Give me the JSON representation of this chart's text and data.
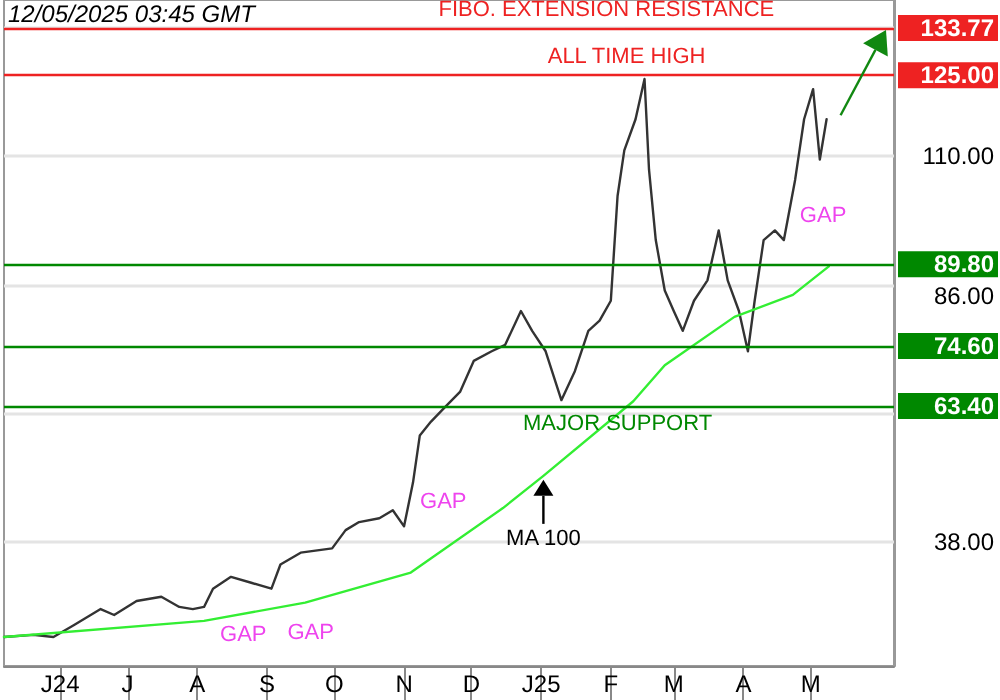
{
  "chart_data": {
    "type": "line",
    "x": [
      "2024-05-07",
      "2024-05-20",
      "2024-05-29",
      "2024-06-07",
      "2024-06-19",
      "2024-06-25",
      "2024-07-05",
      "2024-07-16",
      "2024-07-24",
      "2024-07-30",
      "2024-08-04",
      "2024-08-08",
      "2024-08-16",
      "2024-08-25",
      "2024-09-03",
      "2024-09-07",
      "2024-09-16",
      "2024-09-30",
      "2024-10-06",
      "2024-10-12",
      "2024-10-21",
      "2024-10-27",
      "2024-11-01",
      "2024-11-05",
      "2024-11-08",
      "2024-11-13",
      "2024-11-19",
      "2024-11-26",
      "2024-12-02",
      "2024-12-10",
      "2024-12-16",
      "2024-12-23",
      "2024-12-28",
      "2025-01-03",
      "2025-01-10",
      "2025-01-16",
      "2025-01-22",
      "2025-01-27",
      "2025-02-01",
      "2025-02-04",
      "2025-02-07",
      "2025-02-12",
      "2025-02-16",
      "2025-02-18",
      "2025-02-21",
      "2025-02-25",
      "2025-03-01",
      "2025-03-05",
      "2025-03-10",
      "2025-03-16",
      "2025-03-21",
      "2025-03-25",
      "2025-03-30",
      "2025-04-03",
      "2025-04-06",
      "2025-04-10",
      "2025-04-15",
      "2025-04-19",
      "2025-04-24",
      "2025-04-28",
      "2025-05-02",
      "2025-05-05",
      "2025-05-08"
    ],
    "series": [
      {
        "color": "#333333",
        "values": [
          20.4,
          20.8,
          20.4,
          22.6,
          25.6,
          24.5,
          27.1,
          27.9,
          26,
          25.6,
          26,
          29.4,
          31.6,
          30.5,
          29.4,
          33.9,
          36.1,
          36.9,
          40.3,
          41.8,
          42.5,
          44,
          41,
          49.2,
          57.9,
          60.5,
          63.1,
          66.1,
          71.8,
          73.6,
          74.8,
          81.1,
          77.4,
          73.6,
          64.5,
          69.9,
          77.4,
          79.3,
          83,
          102.5,
          111,
          116.8,
          124.3,
          107.4,
          94.3,
          84.9,
          81.1,
          77.4,
          83,
          86.8,
          96.1,
          86.8,
          81.1,
          73.6,
          83,
          94.3,
          96.1,
          94.3,
          105.5,
          116.8,
          122.4,
          109.3,
          116.8
        ]
      },
      {
        "name": "MA 100",
        "color": "#33ee33",
        "x": [
          "2024-05-07",
          "2024-08-04",
          "2024-09-18",
          "2024-11-04",
          "2024-12-15",
          "2025-01-02",
          "2025-02-11",
          "2025-02-25",
          "2025-03-28",
          "2025-04-23",
          "2025-05-09"
        ],
        "values": [
          20.4,
          23.4,
          26.8,
          32.4,
          44.4,
          50.4,
          64.3,
          71,
          80,
          84.1,
          89.4
        ]
      }
    ],
    "xlim": [
      "2024-05-07",
      "2025-06-07"
    ],
    "xticks": [
      {
        "value": "2024-06-01",
        "label": "J24"
      },
      {
        "value": "2024-07-01",
        "label": "J"
      },
      {
        "value": "2024-08-01",
        "label": "A"
      },
      {
        "value": "2024-09-01",
        "label": "S"
      },
      {
        "value": "2024-10-01",
        "label": "O"
      },
      {
        "value": "2024-11-01",
        "label": "N"
      },
      {
        "value": "2024-12-01",
        "label": "D"
      },
      {
        "value": "2025-01-01",
        "label": "J25"
      },
      {
        "value": "2025-02-01",
        "label": "F"
      },
      {
        "value": "2025-03-01",
        "label": "M"
      },
      {
        "value": "2025-04-01",
        "label": "A"
      },
      {
        "value": "2025-05-01",
        "label": "M"
      }
    ],
    "ylim": [
      15,
      139
    ],
    "yticks": [
      {
        "value": 38,
        "label": "38.00"
      },
      {
        "value": 62,
        "label": null
      },
      {
        "value": 86,
        "label": "86.00"
      },
      {
        "value": 110,
        "label": "110.00"
      },
      {
        "value": 134,
        "label": null
      }
    ],
    "grid": "y",
    "ref_lines": [
      {
        "axis": "y",
        "value": 133.77,
        "label": "133.77",
        "color": "#ee2222"
      },
      {
        "axis": "y",
        "value": 125,
        "label": "125.00",
        "color": "#ee2222"
      },
      {
        "axis": "y",
        "value": 89.8,
        "label": "89.80",
        "color": "#008800"
      },
      {
        "axis": "y",
        "value": 74.6,
        "label": "74.60",
        "color": "#008800"
      },
      {
        "axis": "y",
        "value": 63.4,
        "label": "63.40",
        "color": "#008800"
      }
    ],
    "annotations": [
      "12/05/2025 03:45 GMT",
      {
        "text": "FIBO. EXTENSION RESISTANCE",
        "x": "2025-01-30",
        "y": 133.77
      },
      {
        "text": "ALL TIME HIGH",
        "x": "2025-02-08",
        "y": 125
      },
      {
        "text": "MAJOR SUPPORT",
        "x": "2025-02-04",
        "y": 63.4
      },
      {
        "text": "GAP",
        "x": "2024-08-04",
        "y": 26
      },
      {
        "text": "GAP",
        "x": "2024-09-03",
        "y": 29.4
      },
      {
        "text": "GAP",
        "x": "2024-11-01",
        "y": 41
      },
      {
        "text": "GAP",
        "x": "2025-04-19",
        "y": 94.3
      }
    ]
  }
}
